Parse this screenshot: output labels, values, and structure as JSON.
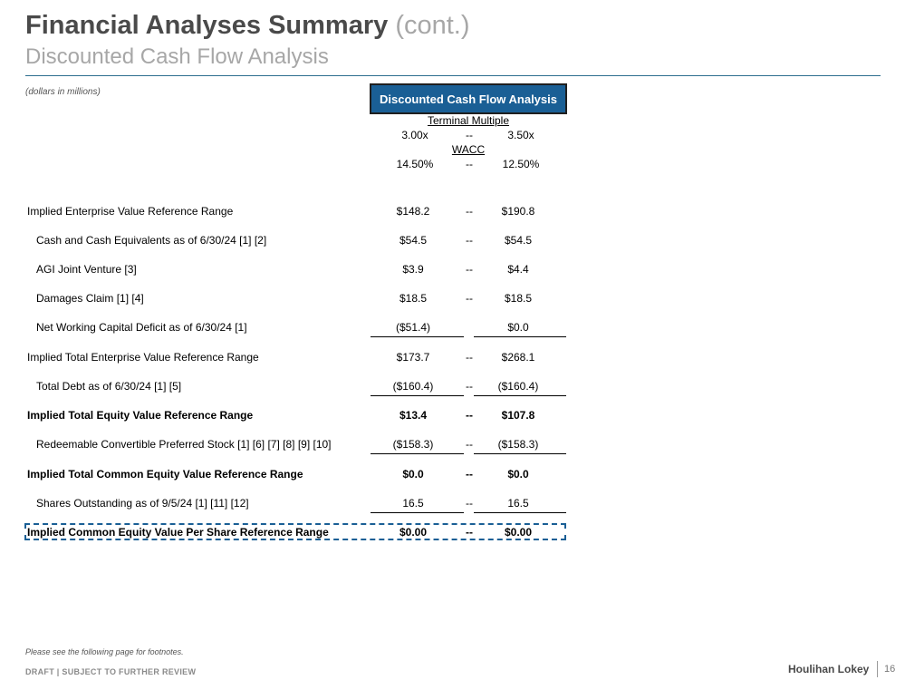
{
  "header": {
    "title": "Financial Analyses Summary",
    "title_suffix": "(cont.)",
    "subtitle": "Discounted Cash Flow Analysis",
    "units_note": "(dollars in millions)"
  },
  "dcf": {
    "header_label": "Discounted Cash Flow Analysis",
    "terminal_multiple_label": "Terminal Multiple",
    "terminal_multiple_low": "3.00x",
    "terminal_multiple_high": "3.50x",
    "wacc_label": "WACC",
    "wacc_low": "14.50%",
    "wacc_high": "12.50%",
    "range_dash": "--"
  },
  "rows": [
    {
      "label": "Implied Enterprise Value Reference Range",
      "low": "$148.2",
      "dash": "--",
      "high": "$190.8"
    },
    {
      "label": "Cash and Cash Equivalents as of 6/30/24 [1] [2]",
      "low": "$54.5",
      "dash": "--",
      "high": "$54.5"
    },
    {
      "label": "AGI Joint Venture [3]",
      "low": "$3.9",
      "dash": "--",
      "high": "$4.4"
    },
    {
      "label": "Damages Claim [1] [4]",
      "low": "$18.5",
      "dash": "--",
      "high": "$18.5"
    },
    {
      "label": "Net Working Capital Deficit as of 6/30/24 [1]",
      "low": "($51.4)",
      "dash": "",
      "high": "$0.0"
    },
    {
      "label": "Implied Total Enterprise Value Reference Range",
      "low": "$173.7",
      "dash": "--",
      "high": "$268.1"
    },
    {
      "label": "Total Debt as of 6/30/24 [1] [5]",
      "low": "($160.4)",
      "dash": "--",
      "high": "($160.4)"
    },
    {
      "label": "Implied Total Equity Value Reference Range",
      "low": "$13.4",
      "dash": "--",
      "high": "$107.8"
    },
    {
      "label": "Redeemable Convertible Preferred Stock [1] [6] [7] [8] [9] [10]",
      "low": "($158.3)",
      "dash": "--",
      "high": "($158.3)"
    },
    {
      "label": "Implied Total Common Equity Value Reference Range",
      "low": "$0.0",
      "dash": "--",
      "high": "$0.0"
    },
    {
      "label": "Shares Outstanding as of 9/5/24 [1] [11] [12]",
      "low": "16.5",
      "dash": "--",
      "high": "16.5"
    },
    {
      "label": "Implied Common Equity Value Per Share Reference Range",
      "low": "$0.00",
      "dash": "--",
      "high": "$0.00"
    }
  ],
  "footer": {
    "footnote": "Please see the following page for footnotes.",
    "draft_label": "DRAFT | SUBJECT TO FURTHER REVIEW",
    "logo_text": "Houlihan Lokey",
    "page_number": "16"
  },
  "colors": {
    "accent_blue": "#1a5f95",
    "title_gray": "#4a4a4a",
    "subtitle_gray": "#a7a7a7"
  }
}
